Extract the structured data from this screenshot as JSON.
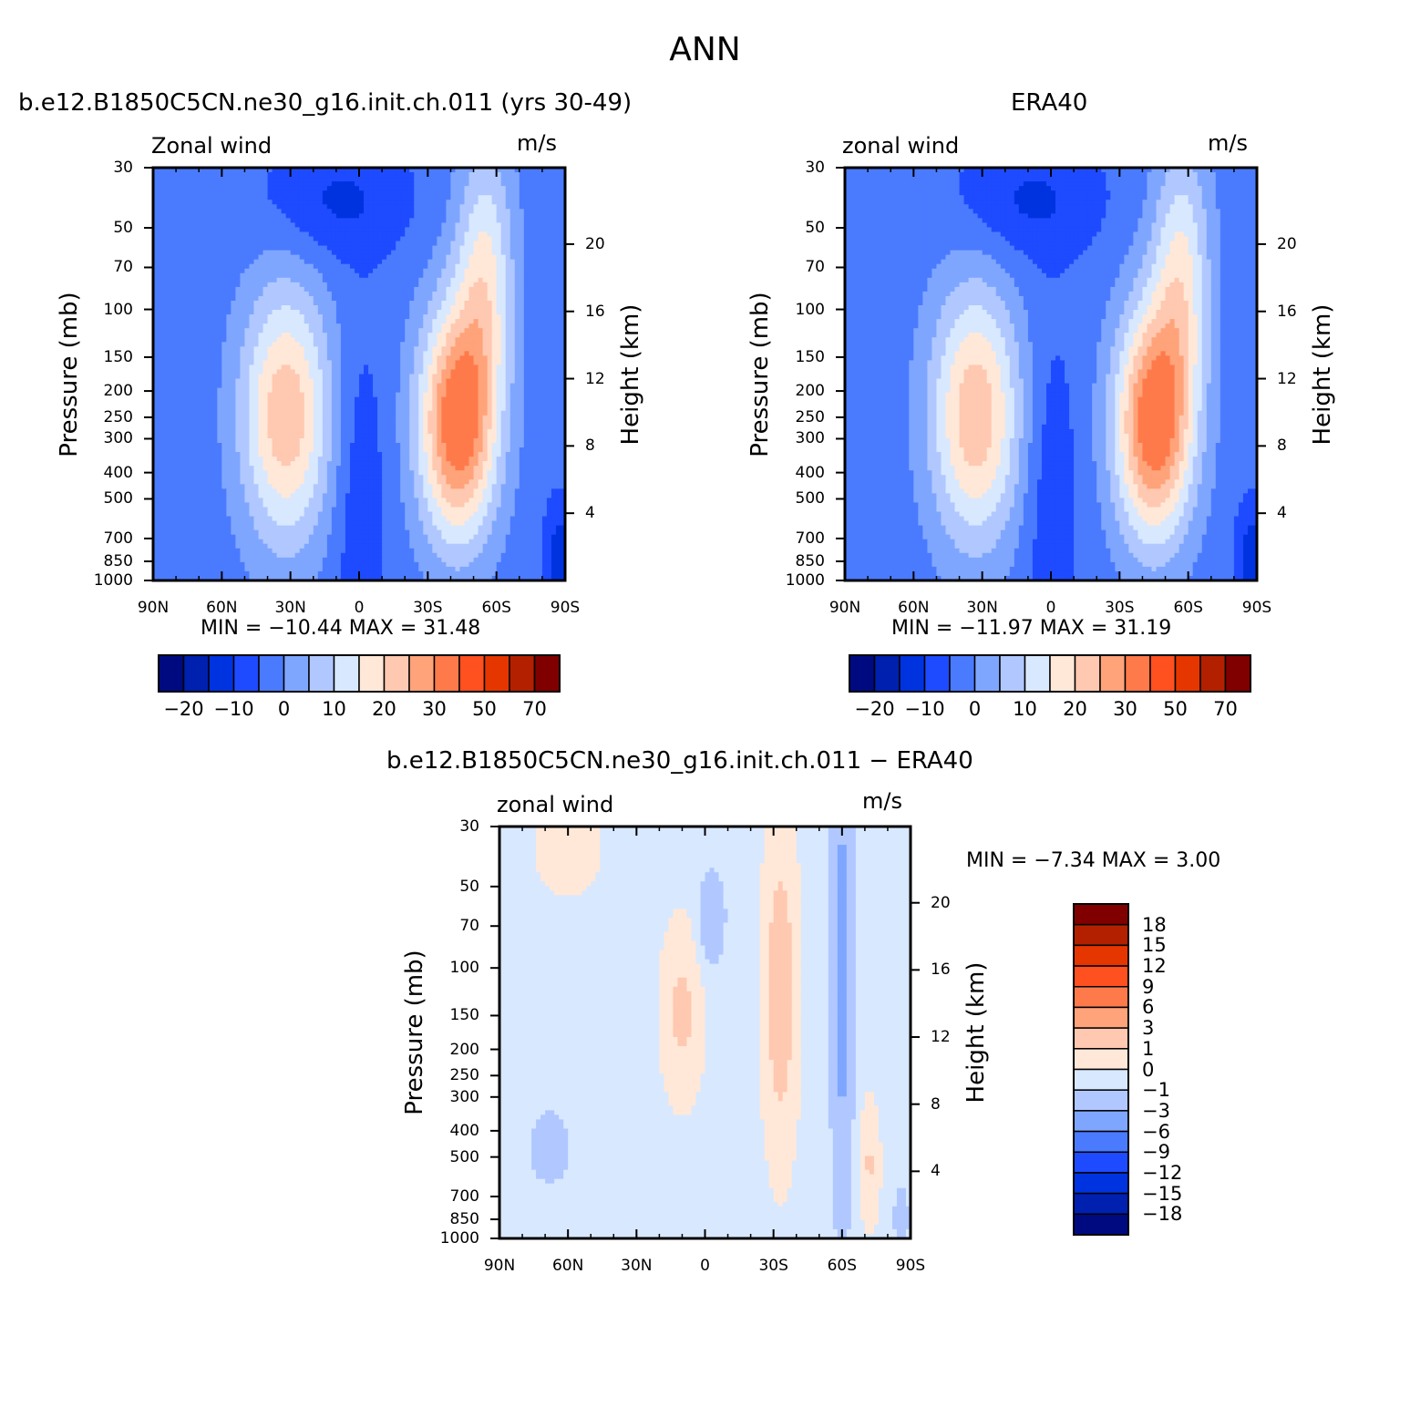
{
  "figure_title": "ANN",
  "colors": {
    "full_palette": [
      "#000a80",
      "#0020b0",
      "#0033e0",
      "#1e4bff",
      "#4a7bff",
      "#7fa6ff",
      "#b0c8ff",
      "#d8e8ff",
      "#ffe8d8",
      "#ffc8b0",
      "#ffa37a",
      "#ff7a4a",
      "#ff5020",
      "#e63600",
      "#b32000",
      "#800000"
    ],
    "diff_palette": [
      "#000a80",
      "#0020b0",
      "#0033e0",
      "#1e4bff",
      "#4a7bff",
      "#7fa6ff",
      "#b0c8ff",
      "#d8e8ff",
      "#ffe8d8",
      "#ffc8b0",
      "#ffa37a",
      "#ff7a4a",
      "#ff5020",
      "#e63600",
      "#b32000",
      "#800000"
    ]
  },
  "chart_data": [
    {
      "id": "model",
      "type": "heatmap",
      "title": "b.e12.B1850C5CN.ne30_g16.init.ch.011 (yrs 30-49)",
      "left_label": "Zonal wind",
      "right_label": "m/s",
      "ylabel": "Pressure (mb)",
      "y2label": "Height (km)",
      "x_ticks": [
        "90N",
        "60N",
        "30N",
        "0",
        "30S",
        "60S",
        "90S"
      ],
      "y_ticks": [
        "30",
        "50",
        "70",
        "100",
        "150",
        "200",
        "250",
        "300",
        "400",
        "500",
        "700",
        "850",
        "1000"
      ],
      "y2_ticks": [
        "20",
        "16",
        "12",
        "8",
        "4"
      ],
      "xlim": [
        -90,
        90
      ],
      "ylim": [
        1000,
        30
      ],
      "y_scale": "log",
      "stats_text": "MIN =  −10.44   MAX =   31.48",
      "min": -10.44,
      "max": 31.48,
      "colorbar_labels": [
        "−20",
        "−10",
        "0",
        "10",
        "20",
        "30",
        "50",
        "70"
      ]
    },
    {
      "id": "obs",
      "type": "heatmap",
      "title": "ERA40",
      "left_label": "zonal wind",
      "right_label": "m/s",
      "ylabel": "Pressure (mb)",
      "y2label": "Height (km)",
      "x_ticks": [
        "90N",
        "60N",
        "30N",
        "0",
        "30S",
        "60S",
        "90S"
      ],
      "y_ticks": [
        "30",
        "50",
        "70",
        "100",
        "150",
        "200",
        "250",
        "300",
        "400",
        "500",
        "700",
        "850",
        "1000"
      ],
      "y2_ticks": [
        "20",
        "16",
        "12",
        "8",
        "4"
      ],
      "xlim": [
        -90,
        90
      ],
      "ylim": [
        1000,
        30
      ],
      "y_scale": "log",
      "stats_text": "MIN =  −11.97   MAX =   31.19",
      "min": -11.97,
      "max": 31.19,
      "colorbar_labels": [
        "−20",
        "−10",
        "0",
        "10",
        "20",
        "30",
        "50",
        "70"
      ]
    },
    {
      "id": "diff",
      "type": "heatmap",
      "title": "b.e12.B1850C5CN.ne30_g16.init.ch.011 − ERA40",
      "left_label": "zonal wind",
      "right_label": "m/s",
      "ylabel": "Pressure (mb)",
      "y2label": "Height (km)",
      "x_ticks": [
        "90N",
        "60N",
        "30N",
        "0",
        "30S",
        "60S",
        "90S"
      ],
      "y_ticks": [
        "30",
        "50",
        "70",
        "100",
        "150",
        "200",
        "250",
        "300",
        "400",
        "500",
        "700",
        "850",
        "1000"
      ],
      "y2_ticks": [
        "20",
        "16",
        "12",
        "8",
        "4"
      ],
      "xlim": [
        -90,
        90
      ],
      "ylim": [
        1000,
        30
      ],
      "y_scale": "log",
      "stats_text": "MIN =   −7.34   MAX =    3.00",
      "min": -7.34,
      "max": 3.0,
      "colorbar_labels": [
        "18",
        "15",
        "12",
        "9",
        "6",
        "3",
        "1",
        "0",
        "−1",
        "−3",
        "−6",
        "−9",
        "−12",
        "−15",
        "−18"
      ]
    }
  ]
}
